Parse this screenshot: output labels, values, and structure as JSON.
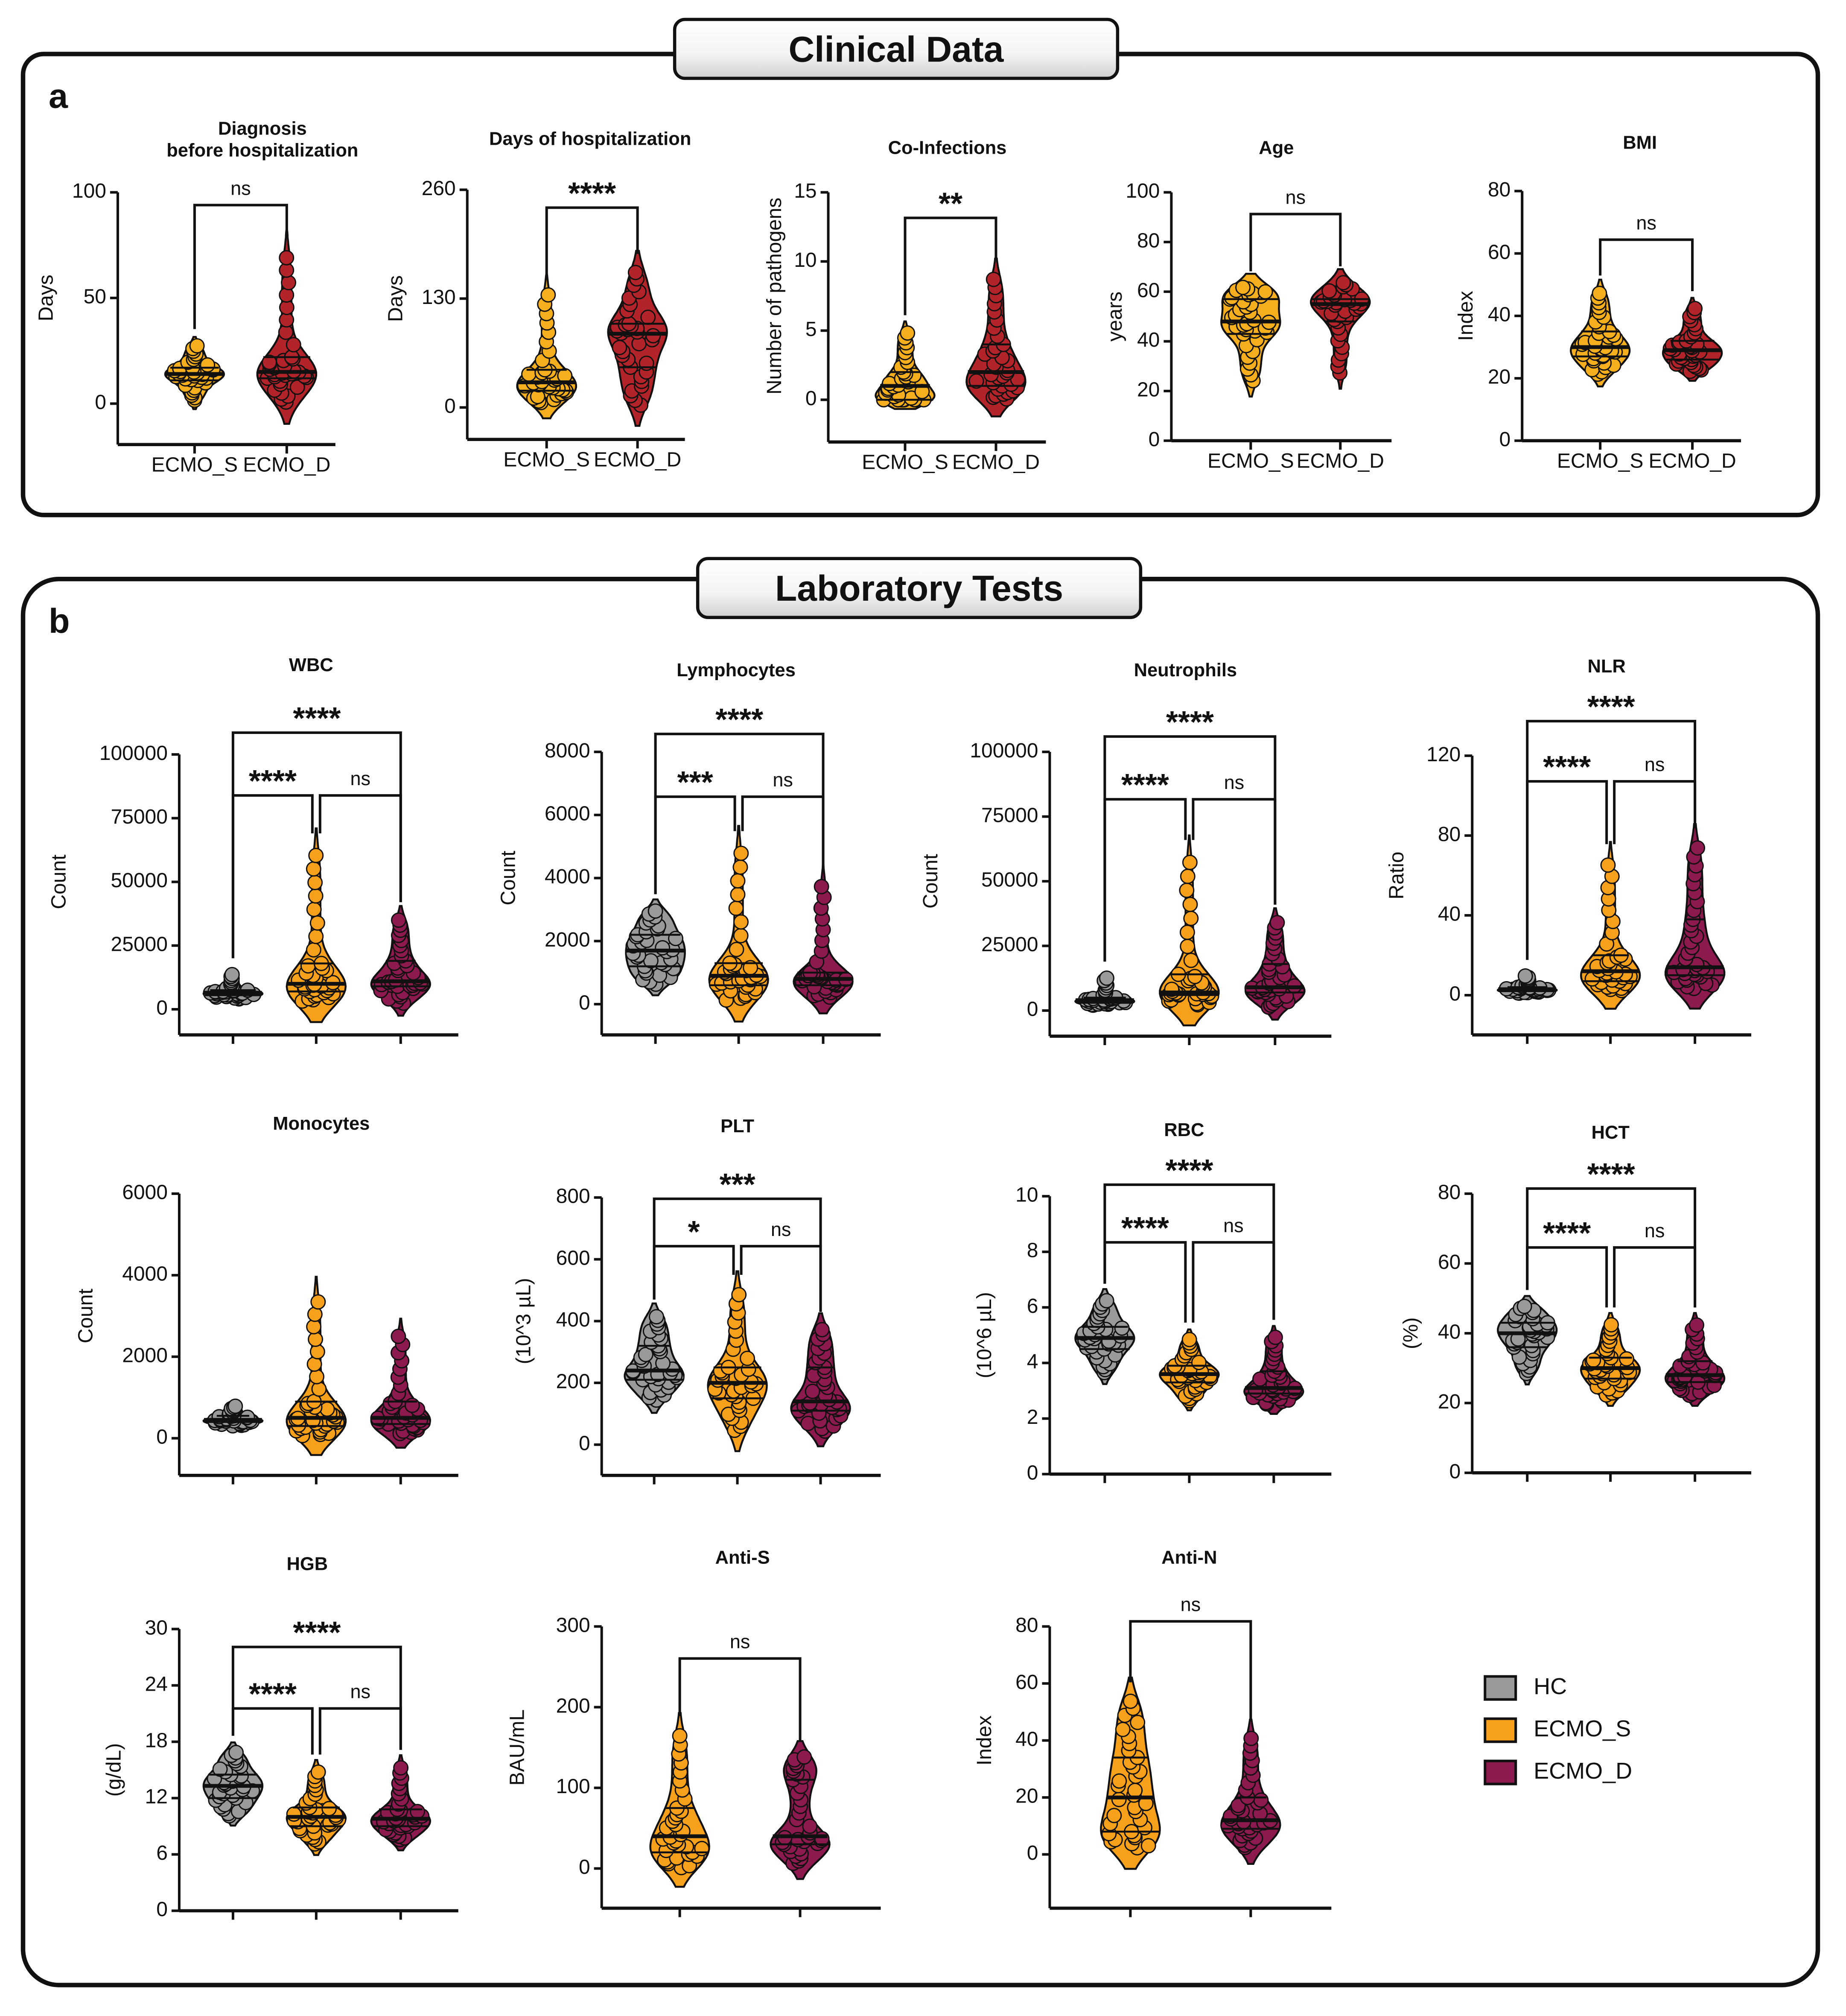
{
  "sections": [
    {
      "label": "a",
      "title": "Clinical Data"
    },
    {
      "label": "b",
      "title": "Laboratory Tests"
    }
  ],
  "legend": [
    {
      "name": "HC",
      "color": "#9a9a9a"
    },
    {
      "name": "ECMO_S",
      "color": "#f7a01c"
    },
    {
      "name": "ECMO_D",
      "color": "#8c1a4e"
    }
  ],
  "chart_data": [
    {
      "type": "violin",
      "section": "a",
      "title": "Diagnosis",
      "title2": "before hospitalization",
      "ylabel": "Days",
      "yticks": [
        0,
        50,
        100
      ],
      "ylim": [
        0,
        100
      ],
      "categories": [
        "ECMO_S",
        "ECMO_D"
      ],
      "show_xlabels": true,
      "series": [
        {
          "name": "ECMO_S",
          "color": "#f4ae1e",
          "min": 1,
          "q1": 11,
          "median": 14,
          "q3": 17,
          "max": 28
        },
        {
          "name": "ECMO_D",
          "color": "#b3232a",
          "min": 0,
          "q1": 12,
          "median": 15,
          "q3": 22,
          "max": 72
        }
      ],
      "comparisons": [
        {
          "a": 0,
          "b": 1,
          "label": "ns",
          "tier": 0
        }
      ]
    },
    {
      "type": "violin",
      "section": "a",
      "title": "Days of hospitalization",
      "ylabel": "Days",
      "yticks": [
        0,
        130,
        260
      ],
      "ylim": [
        0,
        260
      ],
      "categories": [
        "ECMO_S",
        "ECMO_D"
      ],
      "show_xlabels": true,
      "series": [
        {
          "name": "ECMO_S",
          "color": "#f4ae1e",
          "min": 5,
          "q1": 20,
          "median": 30,
          "q3": 45,
          "max": 140
        },
        {
          "name": "ECMO_D",
          "color": "#b3232a",
          "min": 0,
          "q1": 48,
          "median": 88,
          "q3": 100,
          "max": 165
        }
      ],
      "comparisons": [
        {
          "a": 0,
          "b": 1,
          "label": "****",
          "tier": 0
        }
      ]
    },
    {
      "type": "violin",
      "section": "a",
      "title": "Co-Infections",
      "ylabel": "Number of pathogens",
      "yticks": [
        0,
        5,
        10,
        15
      ],
      "ylim": [
        0,
        15
      ],
      "categories": [
        "ECMO_S",
        "ECMO_D"
      ],
      "show_xlabels": true,
      "series": [
        {
          "name": "ECMO_S",
          "color": "#f4ae1e",
          "min": 0,
          "q1": 0,
          "median": 1,
          "q3": 2,
          "max": 5
        },
        {
          "name": "ECMO_D",
          "color": "#b3232a",
          "min": 0,
          "q1": 1,
          "median": 2,
          "q3": 4,
          "max": 9
        }
      ],
      "comparisons": [
        {
          "a": 0,
          "b": 1,
          "label": "**",
          "tier": 0
        }
      ]
    },
    {
      "type": "violin",
      "section": "a",
      "title": "Age",
      "ylabel": "years",
      "yticks": [
        0,
        20,
        40,
        60,
        80,
        100
      ],
      "ylim": [
        0,
        100
      ],
      "categories": [
        "ECMO_S",
        "ECMO_D"
      ],
      "show_xlabels": true,
      "series": [
        {
          "name": "ECMO_S",
          "color": "#f4ae1e",
          "min": 23,
          "q1": 43,
          "median": 48,
          "q3": 57,
          "max": 62
        },
        {
          "name": "ECMO_D",
          "color": "#b3232a",
          "min": 26,
          "q1": 48,
          "median": 55,
          "q3": 57,
          "max": 64
        }
      ],
      "comparisons": [
        {
          "a": 0,
          "b": 1,
          "label": "ns",
          "tier": 0
        }
      ]
    },
    {
      "type": "violin",
      "section": "a",
      "title": "BMI",
      "ylabel": "Index",
      "yticks": [
        0,
        20,
        40,
        60,
        80
      ],
      "ylim": [
        0,
        80
      ],
      "categories": [
        "ECMO_S",
        "ECMO_D"
      ],
      "show_xlabels": true,
      "series": [
        {
          "name": "ECMO_S",
          "color": "#f4ae1e",
          "min": 21,
          "q1": 27,
          "median": 30,
          "q3": 35,
          "max": 48
        },
        {
          "name": "ECMO_D",
          "color": "#b3232a",
          "min": 22,
          "q1": 26,
          "median": 29,
          "q3": 32,
          "max": 43
        }
      ],
      "comparisons": [
        {
          "a": 0,
          "b": 1,
          "label": "ns",
          "tier": 0
        }
      ]
    },
    {
      "type": "violin",
      "section": "b",
      "title": "WBC",
      "ylabel": "Count",
      "yticks": [
        0,
        25000,
        50000,
        75000,
        100000
      ],
      "ylim": [
        0,
        100000
      ],
      "categories": [
        "HC",
        "ECMO_S",
        "ECMO_D"
      ],
      "show_xlabels": false,
      "series": [
        {
          "name": "HC",
          "color": "#9a9a9a",
          "min": 4000,
          "q1": 5500,
          "median": 6500,
          "q3": 7500,
          "max": 14000
        },
        {
          "name": "ECMO_S",
          "color": "#f7a01c",
          "min": 3000,
          "q1": 7000,
          "median": 10000,
          "q3": 18000,
          "max": 63000
        },
        {
          "name": "ECMO_D",
          "color": "#8c1a4e",
          "min": 2000,
          "q1": 9000,
          "median": 11000,
          "q3": 19000,
          "max": 36000
        }
      ],
      "comparisons": [
        {
          "a": 0,
          "b": 1,
          "label": "****",
          "tier": 0
        },
        {
          "a": 1,
          "b": 2,
          "label": "ns",
          "tier": 0
        },
        {
          "a": 0,
          "b": 2,
          "label": "****",
          "tier": 1
        }
      ]
    },
    {
      "type": "violin",
      "section": "b",
      "title": "Lymphocytes",
      "ylabel": "Count",
      "yticks": [
        0,
        2000,
        4000,
        6000,
        8000
      ],
      "ylim": [
        0,
        8000
      ],
      "categories": [
        "HC",
        "ECMO_S",
        "ECMO_D"
      ],
      "show_xlabels": false,
      "series": [
        {
          "name": "HC",
          "color": "#9a9a9a",
          "min": 600,
          "q1": 1200,
          "median": 1700,
          "q3": 2200,
          "max": 3000
        },
        {
          "name": "ECMO_S",
          "color": "#f7a01c",
          "min": 100,
          "q1": 600,
          "median": 900,
          "q3": 1300,
          "max": 5000
        },
        {
          "name": "ECMO_D",
          "color": "#8c1a4e",
          "min": 200,
          "q1": 600,
          "median": 800,
          "q3": 1000,
          "max": 3900
        }
      ],
      "comparisons": [
        {
          "a": 0,
          "b": 1,
          "label": "***",
          "tier": 0
        },
        {
          "a": 1,
          "b": 2,
          "label": "ns",
          "tier": 0
        },
        {
          "a": 0,
          "b": 2,
          "label": "****",
          "tier": 1
        }
      ]
    },
    {
      "type": "violin",
      "section": "b",
      "title": "Neutrophils",
      "ylabel": "Count",
      "yticks": [
        0,
        25000,
        50000,
        75000,
        100000
      ],
      "ylim": [
        0,
        100000
      ],
      "categories": [
        "HC",
        "ECMO_S",
        "ECMO_D"
      ],
      "show_xlabels": false,
      "series": [
        {
          "name": "HC",
          "color": "#9a9a9a",
          "min": 2000,
          "q1": 3000,
          "median": 4000,
          "q3": 5000,
          "max": 13000
        },
        {
          "name": "ECMO_S",
          "color": "#f7a01c",
          "min": 2000,
          "q1": 6000,
          "median": 7000,
          "q3": 14000,
          "max": 60000
        },
        {
          "name": "ECMO_D",
          "color": "#8c1a4e",
          "min": 1000,
          "q1": 7000,
          "median": 9000,
          "q3": 18000,
          "max": 35000
        }
      ],
      "comparisons": [
        {
          "a": 0,
          "b": 1,
          "label": "****",
          "tier": 0
        },
        {
          "a": 1,
          "b": 2,
          "label": "ns",
          "tier": 0
        },
        {
          "a": 0,
          "b": 2,
          "label": "****",
          "tier": 1
        }
      ]
    },
    {
      "type": "violin",
      "section": "b",
      "title": "NLR",
      "ylabel": "Ratio",
      "yticks": [
        0,
        40,
        80,
        120
      ],
      "ylim": [
        0,
        120
      ],
      "categories": [
        "HC",
        "ECMO_S",
        "ECMO_D"
      ],
      "show_xlabels": false,
      "series": [
        {
          "name": "HC",
          "color": "#9a9a9a",
          "min": 1,
          "q1": 2,
          "median": 3,
          "q3": 4,
          "max": 10
        },
        {
          "name": "ECMO_S",
          "color": "#f7a01c",
          "min": 2,
          "q1": 7,
          "median": 12,
          "q3": 20,
          "max": 68
        },
        {
          "name": "ECMO_D",
          "color": "#8c1a4e",
          "min": 3,
          "q1": 10,
          "median": 14,
          "q3": 38,
          "max": 76
        }
      ],
      "comparisons": [
        {
          "a": 0,
          "b": 1,
          "label": "****",
          "tier": 0
        },
        {
          "a": 1,
          "b": 2,
          "label": "ns",
          "tier": 0
        },
        {
          "a": 0,
          "b": 2,
          "label": "****",
          "tier": 1
        }
      ]
    },
    {
      "type": "violin",
      "section": "b",
      "title": "Monocytes",
      "ylabel": "Count",
      "yticks": [
        0,
        2000,
        4000,
        6000
      ],
      "ylim": [
        0,
        6000
      ],
      "categories": [
        "HC",
        "ECMO_S",
        "ECMO_D"
      ],
      "show_xlabels": false,
      "series": [
        {
          "name": "HC",
          "color": "#9a9a9a",
          "min": 300,
          "q1": 400,
          "median": 450,
          "q3": 550,
          "max": 800
        },
        {
          "name": "ECMO_S",
          "color": "#f7a01c",
          "min": 50,
          "q1": 300,
          "median": 500,
          "q3": 900,
          "max": 3500
        },
        {
          "name": "ECMO_D",
          "color": "#8c1a4e",
          "min": 100,
          "q1": 350,
          "median": 500,
          "q3": 900,
          "max": 2600
        }
      ],
      "comparisons": []
    },
    {
      "type": "violin",
      "section": "b",
      "title": "PLT",
      "ylabel": "(10^3 µL)",
      "yticks": [
        0,
        200,
        400,
        600,
        800
      ],
      "ylim": [
        0,
        800
      ],
      "categories": [
        "HC",
        "ECMO_S",
        "ECMO_D"
      ],
      "show_xlabels": false,
      "series": [
        {
          "name": "HC",
          "color": "#9a9a9a",
          "min": 140,
          "q1": 210,
          "median": 240,
          "q3": 320,
          "max": 420
        },
        {
          "name": "ECMO_S",
          "color": "#f7a01c",
          "min": 40,
          "q1": 150,
          "median": 200,
          "q3": 250,
          "max": 500
        },
        {
          "name": "ECMO_D",
          "color": "#8c1a4e",
          "min": 40,
          "q1": 110,
          "median": 140,
          "q3": 250,
          "max": 380
        }
      ],
      "comparisons": [
        {
          "a": 0,
          "b": 1,
          "label": "*",
          "tier": 0
        },
        {
          "a": 1,
          "b": 2,
          "label": "ns",
          "tier": 0
        },
        {
          "a": 0,
          "b": 2,
          "label": "***",
          "tier": 1
        }
      ]
    },
    {
      "type": "violin",
      "section": "b",
      "title": "RBC",
      "ylabel": "(10^6 µL)",
      "yticks": [
        0,
        2,
        4,
        6,
        8,
        10
      ],
      "ylim": [
        0,
        10
      ],
      "categories": [
        "HC",
        "ECMO_S",
        "ECMO_D"
      ],
      "show_xlabels": false,
      "series": [
        {
          "name": "HC",
          "color": "#9a9a9a",
          "min": 3.6,
          "q1": 4.5,
          "median": 4.9,
          "q3": 5.3,
          "max": 6.3
        },
        {
          "name": "ECMO_S",
          "color": "#f7a01c",
          "min": 2.6,
          "q1": 3.3,
          "median": 3.6,
          "q3": 3.9,
          "max": 4.9
        },
        {
          "name": "ECMO_D",
          "color": "#8c1a4e",
          "min": 2.5,
          "q1": 2.9,
          "median": 3.1,
          "q3": 3.7,
          "max": 5.0
        }
      ],
      "comparisons": [
        {
          "a": 0,
          "b": 1,
          "label": "****",
          "tier": 0
        },
        {
          "a": 1,
          "b": 2,
          "label": "ns",
          "tier": 0
        },
        {
          "a": 0,
          "b": 2,
          "label": "****",
          "tier": 1
        }
      ]
    },
    {
      "type": "violin",
      "section": "b",
      "title": "HCT",
      "ylabel": "(%)",
      "yticks": [
        0,
        20,
        40,
        60,
        80
      ],
      "ylim": [
        0,
        80
      ],
      "categories": [
        "HC",
        "ECMO_S",
        "ECMO_D"
      ],
      "show_xlabels": false,
      "series": [
        {
          "name": "HC",
          "color": "#9a9a9a",
          "min": 28,
          "q1": 36,
          "median": 40,
          "q3": 43,
          "max": 48
        },
        {
          "name": "ECMO_S",
          "color": "#f7a01c",
          "min": 22,
          "q1": 27,
          "median": 30,
          "q3": 33,
          "max": 43
        },
        {
          "name": "ECMO_D",
          "color": "#8c1a4e",
          "min": 22,
          "q1": 26,
          "median": 28,
          "q3": 32,
          "max": 43
        }
      ],
      "comparisons": [
        {
          "a": 0,
          "b": 1,
          "label": "****",
          "tier": 0
        },
        {
          "a": 1,
          "b": 2,
          "label": "ns",
          "tier": 0
        },
        {
          "a": 0,
          "b": 2,
          "label": "****",
          "tier": 1
        }
      ]
    },
    {
      "type": "violin",
      "section": "b",
      "title": "HGB",
      "ylabel": "(g/dL)",
      "yticks": [
        0,
        6,
        12,
        18,
        24,
        30
      ],
      "ylim": [
        0,
        30
      ],
      "categories": [
        "HC",
        "ECMO_S",
        "ECMO_D"
      ],
      "show_xlabels": false,
      "series": [
        {
          "name": "HC",
          "color": "#9a9a9a",
          "min": 10,
          "q1": 12,
          "median": 13.3,
          "q3": 14.5,
          "max": 17
        },
        {
          "name": "ECMO_S",
          "color": "#f7a01c",
          "min": 7,
          "q1": 9,
          "median": 10,
          "q3": 11,
          "max": 15
        },
        {
          "name": "ECMO_D",
          "color": "#8c1a4e",
          "min": 7.5,
          "q1": 9,
          "median": 9.8,
          "q3": 10.8,
          "max": 15.5
        }
      ],
      "comparisons": [
        {
          "a": 0,
          "b": 1,
          "label": "****",
          "tier": 0
        },
        {
          "a": 1,
          "b": 2,
          "label": "ns",
          "tier": 0
        },
        {
          "a": 0,
          "b": 2,
          "label": "****",
          "tier": 1
        }
      ]
    },
    {
      "type": "violin",
      "section": "b",
      "title": "Anti-S",
      "ylabel": "BAU/mL",
      "yticks": [
        0,
        100,
        200,
        300
      ],
      "ylim": [
        0,
        300
      ],
      "categories": [
        "ECMO_S",
        "ECMO_D"
      ],
      "show_xlabels": false,
      "series": [
        {
          "name": "ECMO_S",
          "color": "#f7a01c",
          "min": 0,
          "q1": 20,
          "median": 40,
          "q3": 75,
          "max": 170
        },
        {
          "name": "ECMO_D",
          "color": "#8c1a4e",
          "min": 5,
          "q1": 30,
          "median": 40,
          "q3": 110,
          "max": 140
        }
      ],
      "comparisons": [
        {
          "a": 0,
          "b": 1,
          "label": "ns",
          "tier": 0
        }
      ]
    },
    {
      "type": "violin",
      "section": "b",
      "title": "Anti-N",
      "ylabel": "Index",
      "yticks": [
        0,
        20,
        40,
        60,
        80
      ],
      "ylim": [
        0,
        80
      ],
      "categories": [
        "ECMO_S",
        "ECMO_D"
      ],
      "show_xlabels": false,
      "series": [
        {
          "name": "ECMO_S",
          "color": "#f7a01c",
          "min": 2,
          "q1": 8,
          "median": 20,
          "q3": 34,
          "max": 55
        },
        {
          "name": "ECMO_D",
          "color": "#8c1a4e",
          "min": 2,
          "q1": 9,
          "median": 12,
          "q3": 20,
          "max": 42
        }
      ],
      "comparisons": [
        {
          "a": 0,
          "b": 1,
          "label": "ns",
          "tier": 0
        }
      ]
    }
  ]
}
